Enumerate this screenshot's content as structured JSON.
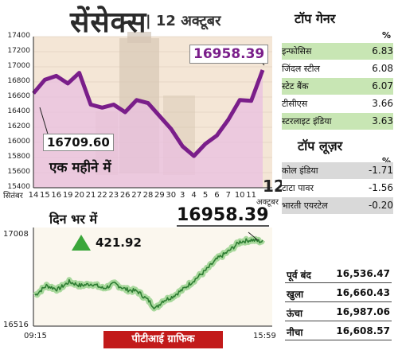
{
  "header": {
    "title": "सेंसेक्स",
    "date": "| 12 अक्टूबर"
  },
  "chart_data": [
    {
      "type": "line",
      "title": "सेंसेक्स",
      "subtitle": "एक महीने में",
      "x_month_label": "सितंबर",
      "x_end_label": "12",
      "x_end_sub": "अक्टूबर",
      "categories": [
        "14",
        "15",
        "16",
        "19",
        "20",
        "21",
        "22",
        "23",
        "26",
        "27",
        "28",
        "29",
        "30",
        "3",
        "4",
        "5",
        "6",
        "7",
        "10",
        "11",
        "12"
      ],
      "values": [
        16650,
        16830,
        16880,
        16780,
        16920,
        16500,
        16460,
        16500,
        16400,
        16560,
        16520,
        16350,
        16180,
        15950,
        15820,
        15980,
        16090,
        16300,
        16560,
        16550,
        16958.39
      ],
      "ylim": [
        15400,
        17400
      ],
      "yticks": [
        15400,
        15600,
        15800,
        16000,
        16200,
        16400,
        16600,
        16800,
        17000,
        17200,
        17400
      ],
      "annotations": {
        "high_label": "16958.39",
        "low_label": "16709.60"
      },
      "colors": {
        "line": "#7a1e8a",
        "shade": "#e9bfe0",
        "bg": "#f4e6d6"
      }
    },
    {
      "type": "line",
      "title": "दिन भर में",
      "start_label": "09:15",
      "end_label": "15:59",
      "y_low_label": "16516",
      "y_high_label": "17008",
      "ylim": [
        16516,
        17008
      ],
      "change_label": "421.92",
      "close_label": "16958.39",
      "anchors": [
        [
          0,
          16670
        ],
        [
          0.05,
          16720
        ],
        [
          0.1,
          16700
        ],
        [
          0.15,
          16740
        ],
        [
          0.2,
          16720
        ],
        [
          0.25,
          16730
        ],
        [
          0.3,
          16705
        ],
        [
          0.35,
          16730
        ],
        [
          0.4,
          16700
        ],
        [
          0.45,
          16690
        ],
        [
          0.5,
          16640
        ],
        [
          0.53,
          16600
        ],
        [
          0.56,
          16640
        ],
        [
          0.6,
          16660
        ],
        [
          0.65,
          16700
        ],
        [
          0.7,
          16750
        ],
        [
          0.75,
          16800
        ],
        [
          0.8,
          16860
        ],
        [
          0.85,
          16900
        ],
        [
          0.9,
          16950
        ],
        [
          0.95,
          16960
        ],
        [
          1.0,
          16950
        ]
      ],
      "colors": {
        "line": "#2e7d32",
        "glow": "#a8d89c",
        "arrow": "#3aa63a"
      }
    }
  ],
  "gainers": {
    "title": "टॉप गेनर",
    "unit": "%",
    "items": [
      {
        "name": "इन्फोसिस",
        "value": "6.83"
      },
      {
        "name": "जिंदल स्टील",
        "value": "6.08"
      },
      {
        "name": "स्टेट बैंक",
        "value": "6.07"
      },
      {
        "name": "टीसीएस",
        "value": "3.66"
      },
      {
        "name": "स्टरलाइट इंडिया",
        "value": "3.63"
      }
    ],
    "colors": {
      "odd": "#c8e6b4",
      "even": "#ffffff"
    }
  },
  "losers": {
    "title": "टॉप लूज़र",
    "unit": "%",
    "items": [
      {
        "name": "कोल इंडिया",
        "value": "-1.71"
      },
      {
        "name": "टाटा पावर",
        "value": "-1.56"
      },
      {
        "name": "भारती एयरटेल",
        "value": "-0.20"
      }
    ],
    "colors": {
      "odd": "#d9d9d9",
      "even": "#ffffff"
    }
  },
  "summary": {
    "items": [
      {
        "name": "पूर्व बंद",
        "value": "16,536.47"
      },
      {
        "name": "खुला",
        "value": "16,660.43"
      },
      {
        "name": "ऊंचा",
        "value": "16,987.06"
      },
      {
        "name": "नीचा",
        "value": "16,608.57"
      }
    ]
  },
  "footer": {
    "credit": "पीटीआई ग्राफिक"
  }
}
